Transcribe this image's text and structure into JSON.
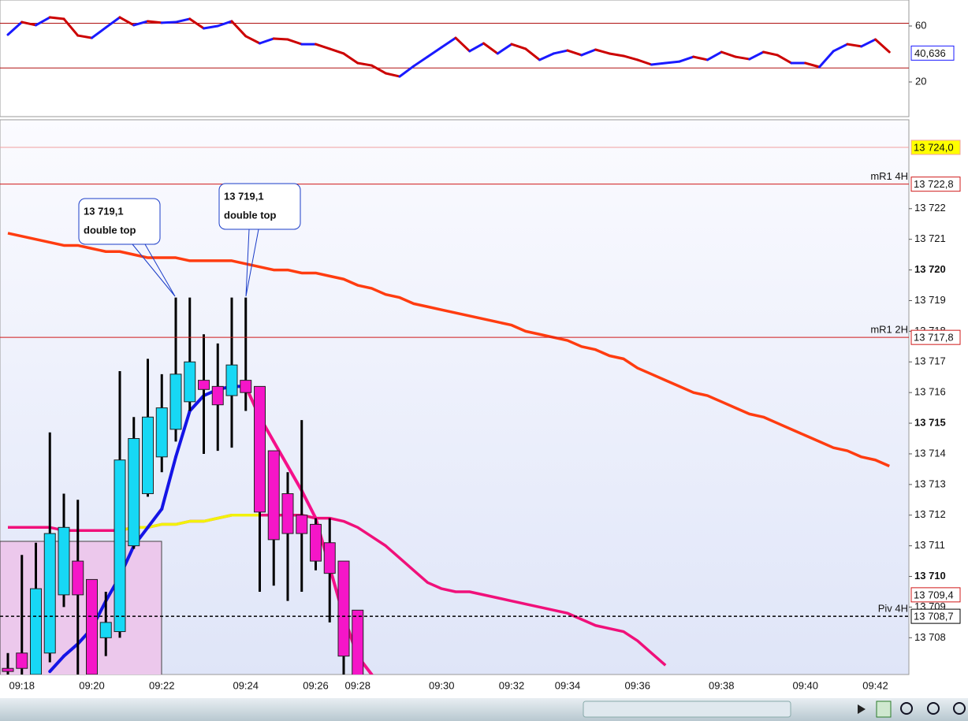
{
  "chart_data": [
    {
      "type": "line",
      "ylim": [
        -4.8,
        78.6
      ],
      "yticks": [
        20,
        60
      ],
      "up_color": "#1a1aff",
      "down_color": "#cc0000",
      "levels": [
        {
          "value": 62,
          "color": "#b01010"
        },
        {
          "value": 30,
          "color": "#b01010"
        }
      ],
      "marker": {
        "value": 40.636,
        "label": "40,636",
        "color": "#1a1aff"
      },
      "values": [
        53.8,
        62.8,
        60.6,
        66.2,
        65.1,
        53.2,
        51.5,
        58.9,
        66.2,
        60.6,
        63.4,
        62.3,
        62.8,
        65.1,
        58.3,
        60.0,
        63.4,
        52.7,
        47.6,
        51.0,
        50.4,
        47.0,
        47.0,
        43.7,
        40.3,
        33.5,
        31.8,
        26.2,
        23.9,
        31.3,
        38.0,
        44.8,
        51.5,
        42.0,
        47.6,
        40.3,
        47.0,
        43.7,
        35.8,
        40.3,
        42.5,
        39.2,
        43.1,
        40.3,
        38.6,
        35.8,
        32.4,
        33.5,
        34.6,
        38.0,
        35.8,
        41.4,
        38.0,
        36.3,
        41.4,
        39.2,
        33.5,
        33.5,
        30.7,
        42.0,
        47.0,
        45.4,
        50.4,
        41.4
      ]
    },
    {
      "type": "candlestick",
      "ylim": [
        13706.8,
        13724.9
      ],
      "up_color": "#17d8f5",
      "down_color": "#f516c8",
      "categories": [
        null,
        "09:18",
        null,
        null,
        null,
        null,
        "09:20",
        null,
        null,
        null,
        null,
        "09:22",
        null,
        null,
        null,
        null,
        null,
        "09:24",
        null,
        null,
        null,
        null,
        "09:26",
        null,
        null,
        "09:28",
        null,
        null,
        null,
        null,
        null,
        "09:30",
        null,
        null,
        null,
        null,
        "09:32",
        null,
        null,
        null,
        "09:34",
        null,
        null,
        null,
        null,
        "09:36",
        null,
        null,
        null,
        null,
        null,
        "09:38",
        null,
        null,
        null,
        null,
        null,
        "09:40",
        null,
        null,
        null,
        null,
        "09:42",
        null
      ],
      "yticks": [
        {
          "value": 13708,
          "label": "13 708"
        },
        {
          "value": 13709,
          "label": "13 709"
        },
        {
          "value": 13710,
          "label": "13 710"
        },
        {
          "value": 13711,
          "label": "13 711"
        },
        {
          "value": 13712,
          "label": "13 712"
        },
        {
          "value": 13713,
          "label": "13 713"
        },
        {
          "value": 13714,
          "label": "13 714"
        },
        {
          "value": 13715,
          "label": "13 715"
        },
        {
          "value": 13716,
          "label": "13 716"
        },
        {
          "value": 13717,
          "label": "13 717"
        },
        {
          "value": 13718,
          "label": "13 718"
        },
        {
          "value": 13719,
          "label": "13 719"
        },
        {
          "value": 13720,
          "label": "13 720"
        },
        {
          "value": 13721,
          "label": "13 721"
        },
        {
          "value": 13722,
          "label": "13 722"
        }
      ],
      "open": [
        13707.0,
        13707.5,
        13706.8,
        13707.5,
        13709.4,
        13710.5,
        13709.9,
        13708.0,
        13708.2,
        13711.0,
        13712.7,
        13713.9,
        13714.8,
        13715.7,
        13716.4,
        13716.2,
        13715.9,
        13716.4,
        13716.2,
        13714.1,
        13712.7,
        13712.0,
        13711.7,
        13711.1,
        13710.5,
        13708.9,
        null,
        null,
        null,
        null,
        null,
        null,
        null,
        null,
        null,
        null,
        null,
        null,
        null,
        null,
        null,
        null,
        null,
        null,
        null,
        null,
        null,
        null,
        null,
        null,
        null,
        null,
        null,
        null,
        null,
        null,
        null,
        null,
        null,
        null,
        null,
        null,
        null,
        null
      ],
      "high": [
        13707.5,
        13710.7,
        13711.1,
        13714.7,
        13712.7,
        13712.5,
        13709.9,
        13709.5,
        13716.7,
        13715.2,
        13717.1,
        13716.6,
        13719.1,
        13719.1,
        13717.9,
        13717.6,
        13719.1,
        13719.1,
        13716.2,
        13714.1,
        13713.4,
        13715.1,
        13711.9,
        13711.9,
        13710.5,
        13708.9,
        null,
        null,
        null,
        null,
        null,
        null,
        null,
        null,
        null,
        null,
        null,
        null,
        null,
        null,
        null,
        null,
        null,
        null,
        null,
        null,
        null,
        null,
        null,
        null,
        null,
        null,
        null,
        null,
        null,
        null,
        null,
        null,
        null,
        null,
        null,
        null,
        null,
        null
      ],
      "low": [
        13706.5,
        13706.5,
        13706.5,
        13707.2,
        13709.0,
        13706.5,
        13706.5,
        13707.4,
        13708.0,
        13710.9,
        13712.6,
        13713.4,
        13714.4,
        13715.4,
        13714.0,
        13714.1,
        13714.2,
        13715.4,
        13709.5,
        13709.7,
        13709.2,
        13709.5,
        13710.2,
        13708.5,
        13706.5,
        13706.0,
        null,
        null,
        null,
        null,
        null,
        null,
        null,
        null,
        null,
        null,
        null,
        null,
        null,
        null,
        null,
        null,
        null,
        null,
        null,
        null,
        null,
        null,
        null,
        null,
        null,
        null,
        null,
        null,
        null,
        null,
        null,
        null,
        null,
        null,
        null,
        null,
        null,
        null
      ],
      "close": [
        13706.9,
        13707.0,
        13709.6,
        13711.4,
        13711.6,
        13709.4,
        13706.8,
        13708.5,
        13713.8,
        13714.5,
        13715.2,
        13715.5,
        13716.6,
        13717.0,
        13716.1,
        13715.6,
        13716.9,
        13716.0,
        13712.1,
        13711.2,
        13711.4,
        13711.4,
        13710.5,
        13710.1,
        13707.4,
        13706.5,
        null,
        null,
        null,
        null,
        null,
        null,
        null,
        null,
        null,
        null,
        null,
        null,
        null,
        null,
        null,
        null,
        null,
        null,
        null,
        null,
        null,
        null,
        null,
        null,
        null,
        null,
        null,
        null,
        null,
        null,
        null,
        null,
        null,
        null,
        null,
        null,
        null,
        null
      ],
      "overlays": [
        {
          "color": "#ff3c10",
          "values": [
            13721.2,
            13721.1,
            13721.0,
            13720.9,
            13720.8,
            13720.8,
            13720.7,
            13720.6,
            13720.6,
            13720.5,
            13720.4,
            13720.4,
            13720.4,
            13720.3,
            13720.3,
            13720.3,
            13720.3,
            13720.2,
            13720.1,
            13720.0,
            13720.0,
            13719.9,
            13719.9,
            13719.8,
            13719.7,
            13719.5,
            13719.4,
            13719.2,
            13719.1,
            13718.9,
            13718.8,
            13718.7,
            13718.6,
            13718.5,
            13718.4,
            13718.3,
            13718.2,
            13718.0,
            13717.9,
            13717.8,
            13717.7,
            13717.5,
            13717.4,
            13717.2,
            13717.1,
            13716.8,
            13716.6,
            13716.4,
            13716.2,
            13716.0,
            13715.9,
            13715.7,
            13715.5,
            13715.3,
            13715.2,
            13715.0,
            13714.8,
            13714.6,
            13714.4,
            13714.2,
            13714.1,
            13713.9,
            13713.8,
            13713.6
          ]
        },
        {
          "color": "#f0107a",
          "values": [
            13711.6,
            13711.6,
            13711.6,
            13711.6,
            13711.5,
            13711.5,
            13711.5,
            13711.5,
            13711.5,
            13711.6,
            13711.6,
            13711.7,
            13711.7,
            13711.8,
            13711.8,
            13711.9,
            13712.0,
            13712.0,
            13712.0,
            13712.0,
            13712.0,
            13712.0,
            13711.9,
            13711.9,
            13711.8,
            13711.6,
            13711.3,
            13711.0,
            13710.6,
            13710.2,
            13709.8,
            13709.6,
            13709.5,
            13709.5,
            13709.4,
            13709.3,
            13709.2,
            13709.1,
            13709.0,
            13708.9,
            13708.8,
            13708.6,
            13708.4,
            13708.3,
            13708.2,
            13707.9,
            13707.5,
            13707.1,
            null,
            null,
            null,
            null,
            null,
            null,
            null,
            null,
            null,
            null,
            null,
            null,
            null,
            null,
            null,
            null
          ]
        },
        {
          "color": "#f2f20a",
          "values": [
            null,
            null,
            null,
            null,
            null,
            null,
            null,
            null,
            13711.5,
            13711.6,
            13711.6,
            13711.7,
            13711.7,
            13711.8,
            13711.8,
            13711.9,
            13712.0,
            13712.0,
            13712.0,
            null,
            null,
            null,
            null,
            null,
            null,
            null,
            null,
            null,
            null,
            null,
            null,
            null,
            null,
            null,
            null,
            null,
            null,
            null,
            null,
            null,
            null,
            null,
            null,
            null,
            null,
            null,
            null,
            null,
            null,
            null,
            null,
            null,
            null,
            null,
            null,
            null,
            null,
            null,
            null,
            null,
            null,
            null,
            null,
            null
          ]
        },
        {
          "up_color": "#1414e6",
          "down_color": "#f5108a",
          "values": [
            null,
            null,
            null,
            13706.9,
            13707.4,
            13707.8,
            13708.3,
            13709.2,
            13710.0,
            13711.0,
            13711.6,
            13712.2,
            13713.9,
            13715.4,
            13715.9,
            13716.1,
            13716.2,
            13716.2,
            13715.2,
            13714.4,
            13713.6,
            13712.8,
            13711.9,
            13710.3,
            13708.7,
            13707.4,
            13706.8,
            null,
            null,
            null,
            null,
            null,
            null,
            null,
            null,
            null,
            null,
            null,
            null,
            null,
            null,
            null,
            null,
            null,
            null,
            null,
            null,
            null,
            null,
            null,
            null,
            null,
            null,
            null,
            null,
            null,
            null,
            null,
            null,
            null,
            null,
            null,
            null,
            null
          ]
        }
      ],
      "levels": [
        {
          "value": 13724.0,
          "label": "13 724,0",
          "color": "#f0a0a0",
          "box": "#ffff00",
          "text_color": "#000000"
        },
        {
          "value": 13722.8,
          "label": "13 722,8",
          "name": "mR1 4H",
          "color": "#d01818",
          "box": "#ffffff",
          "text_color": "#d01818"
        },
        {
          "value": 13717.8,
          "label": "13 717,8",
          "name": "mR1 2H",
          "color": "#d01818",
          "box": "#ffffff",
          "text_color": "#d01818"
        },
        {
          "value": 13709.4,
          "label": "13 709,4",
          "line": false,
          "color": "#d01818",
          "box": "#ffffff",
          "text_color": "#d01818"
        },
        {
          "value": 13708.7,
          "label": "13 708,7",
          "name": "Piv 4H",
          "dash": true,
          "color": "#000000",
          "box": "#ffffff",
          "text_color": "#000000"
        }
      ],
      "annotations": [
        {
          "lines": [
            "13 719,1",
            "double top"
          ]
        },
        {
          "lines": [
            "13 719,1",
            "double top"
          ]
        }
      ]
    }
  ]
}
